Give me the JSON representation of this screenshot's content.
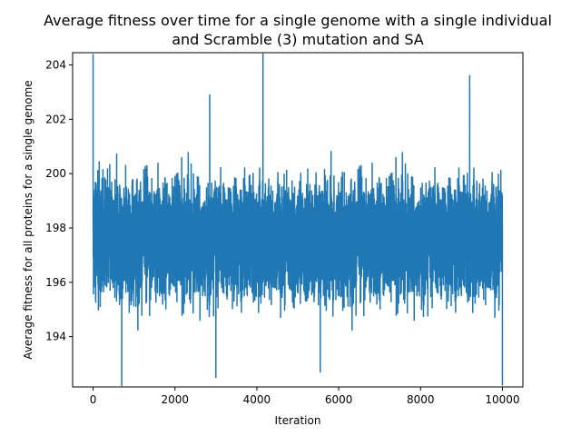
{
  "chart_data": {
    "type": "line",
    "title_line1": "Average fitness over time for a single genome with a single individual",
    "title_line2": "and Scramble (3) mutation and SA",
    "xlabel": "Iteration",
    "ylabel": "Average fitness for all proteins for a single genome",
    "xlim": [
      -500,
      10500
    ],
    "ylim": [
      192.15,
      204.45
    ],
    "xticks": [
      0,
      2000,
      4000,
      6000,
      8000,
      10000
    ],
    "yticks": [
      194,
      196,
      198,
      200,
      202,
      204
    ],
    "grid": false,
    "series": [
      {
        "color": "#1f77b4",
        "mean": 197.6,
        "band": [
          195.3,
          200.6
        ],
        "range": [
          192.2,
          204.4
        ],
        "n_points": 10001,
        "x_start": 0,
        "x_end": 10000,
        "notable_points": [
          {
            "x": 0,
            "y": 204.4
          },
          {
            "x": 700,
            "y": 192.2
          },
          {
            "x": 4150,
            "y": 204.4
          },
          {
            "x": 9200,
            "y": 203.6
          },
          {
            "x": 10000,
            "y": 192.2
          },
          {
            "x": 2850,
            "y": 202.9
          },
          {
            "x": 3000,
            "y": 192.5
          },
          {
            "x": 5550,
            "y": 192.7
          }
        ]
      }
    ]
  }
}
